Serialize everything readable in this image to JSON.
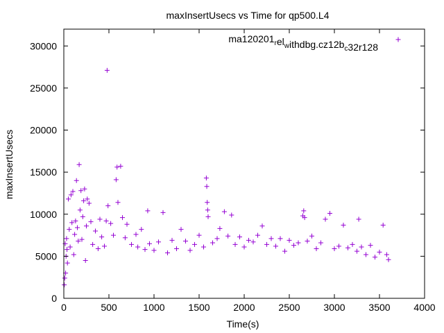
{
  "chart_data": {
    "type": "scatter",
    "title": "maxInsertUsecs vs Time for qp500.L4",
    "xlabel": "Time(s)",
    "ylabel": "maxInsertUsecs",
    "xlim": [
      0,
      4000
    ],
    "ylim": [
      0,
      32000
    ],
    "xticks": [
      0,
      500,
      1000,
      1500,
      2000,
      2500,
      3000,
      3500,
      4000
    ],
    "yticks": [
      0,
      5000,
      10000,
      15000,
      20000,
      25000,
      30000
    ],
    "xtick_labels": [
      "0",
      "500",
      "1000",
      "1500",
      "2000",
      "2500",
      "3000",
      "3500",
      "4000"
    ],
    "ytick_labels": [
      "0",
      "5000",
      "10000",
      "15000",
      "20000",
      "25000",
      "30000"
    ],
    "grid": false,
    "legend_position": "top-right",
    "series": [
      {
        "name_parts": [
          {
            "text": "ma120201",
            "shift": "none"
          },
          {
            "text": "r",
            "shift": "sub"
          },
          {
            "text": "el",
            "shift": "none"
          },
          {
            "text": "w",
            "shift": "sub"
          },
          {
            "text": "ithdbg.cz12b",
            "shift": "none"
          },
          {
            "text": "c",
            "shift": "sub"
          },
          {
            "text": "32r128",
            "shift": "none"
          }
        ],
        "color": "#9400d3",
        "marker": "plus",
        "points": [
          [
            5,
            1600
          ],
          [
            10,
            2400
          ],
          [
            15,
            6500
          ],
          [
            20,
            3000
          ],
          [
            25,
            5000
          ],
          [
            30,
            7100
          ],
          [
            35,
            5800
          ],
          [
            40,
            4200
          ],
          [
            50,
            11800
          ],
          [
            60,
            8200
          ],
          [
            70,
            6100
          ],
          [
            80,
            12300
          ],
          [
            90,
            9000
          ],
          [
            100,
            12700
          ],
          [
            110,
            5200
          ],
          [
            120,
            7600
          ],
          [
            130,
            9200
          ],
          [
            140,
            14000
          ],
          [
            150,
            8400
          ],
          [
            160,
            6800
          ],
          [
            170,
            15900
          ],
          [
            180,
            10500
          ],
          [
            190,
            12800
          ],
          [
            200,
            7000
          ],
          [
            210,
            9700
          ],
          [
            220,
            11600
          ],
          [
            230,
            13000
          ],
          [
            240,
            4500
          ],
          [
            250,
            8600
          ],
          [
            260,
            11800
          ],
          [
            280,
            11300
          ],
          [
            300,
            9100
          ],
          [
            320,
            6400
          ],
          [
            350,
            8000
          ],
          [
            380,
            5900
          ],
          [
            400,
            9400
          ],
          [
            420,
            7300
          ],
          [
            450,
            6200
          ],
          [
            470,
            9200
          ],
          [
            490,
            11000
          ],
          [
            480,
            27100
          ],
          [
            520,
            8900
          ],
          [
            550,
            7500
          ],
          [
            580,
            14100
          ],
          [
            590,
            15600
          ],
          [
            600,
            11400
          ],
          [
            630,
            15700
          ],
          [
            650,
            9600
          ],
          [
            680,
            7200
          ],
          [
            700,
            8800
          ],
          [
            750,
            6400
          ],
          [
            800,
            7600
          ],
          [
            820,
            6100
          ],
          [
            860,
            8200
          ],
          [
            900,
            5800
          ],
          [
            930,
            10400
          ],
          [
            950,
            6500
          ],
          [
            1000,
            5700
          ],
          [
            1050,
            6700
          ],
          [
            1100,
            10200
          ],
          [
            1150,
            5400
          ],
          [
            1200,
            6900
          ],
          [
            1250,
            5900
          ],
          [
            1300,
            8200
          ],
          [
            1350,
            6800
          ],
          [
            1400,
            5700
          ],
          [
            1450,
            6400
          ],
          [
            1500,
            7500
          ],
          [
            1550,
            6100
          ],
          [
            1580,
            14300
          ],
          [
            1585,
            13300
          ],
          [
            1590,
            11400
          ],
          [
            1595,
            10500
          ],
          [
            1600,
            9700
          ],
          [
            1650,
            6600
          ],
          [
            1700,
            7100
          ],
          [
            1730,
            8300
          ],
          [
            1780,
            10300
          ],
          [
            1820,
            7400
          ],
          [
            1860,
            9900
          ],
          [
            1900,
            6400
          ],
          [
            1950,
            7300
          ],
          [
            2000,
            6100
          ],
          [
            2050,
            6900
          ],
          [
            2100,
            6700
          ],
          [
            2150,
            7500
          ],
          [
            2200,
            8600
          ],
          [
            2250,
            6400
          ],
          [
            2300,
            7100
          ],
          [
            2350,
            6200
          ],
          [
            2400,
            7100
          ],
          [
            2450,
            5600
          ],
          [
            2500,
            6900
          ],
          [
            2550,
            6300
          ],
          [
            2600,
            6600
          ],
          [
            2650,
            9800
          ],
          [
            2660,
            10400
          ],
          [
            2670,
            9600
          ],
          [
            2700,
            6800
          ],
          [
            2750,
            7400
          ],
          [
            2800,
            5900
          ],
          [
            2850,
            6600
          ],
          [
            2900,
            9400
          ],
          [
            2950,
            10100
          ],
          [
            3000,
            5900
          ],
          [
            3050,
            6200
          ],
          [
            3100,
            8700
          ],
          [
            3150,
            6000
          ],
          [
            3200,
            6400
          ],
          [
            3250,
            5600
          ],
          [
            3270,
            9400
          ],
          [
            3300,
            6100
          ],
          [
            3350,
            5200
          ],
          [
            3400,
            6300
          ],
          [
            3450,
            4900
          ],
          [
            3500,
            5500
          ],
          [
            3540,
            8700
          ],
          [
            3580,
            5200
          ],
          [
            3600,
            4600
          ]
        ]
      }
    ]
  }
}
